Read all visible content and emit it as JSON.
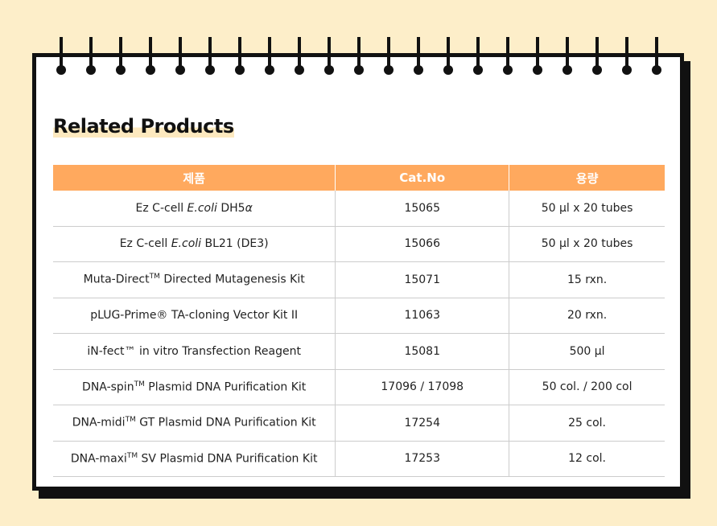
{
  "header": {
    "title": "Related Products"
  },
  "table": {
    "columns": [
      "제품",
      "Cat.No",
      "용량"
    ],
    "rows": [
      [
        [
          {
            "text": "Ez C-cell "
          },
          {
            "text": "E.coli",
            "style": "italic"
          },
          {
            "text": " DH5"
          },
          {
            "text": "α",
            "style": "italic"
          }
        ],
        "15065",
        "50 µl x 20 tubes"
      ],
      [
        [
          {
            "text": "Ez C-cell "
          },
          {
            "text": "E.coli",
            "style": "italic"
          },
          {
            "text": " BL21 (DE3)"
          }
        ],
        "15066",
        "50 µl x 20 tubes"
      ],
      [
        [
          {
            "text": "Muta-Direct"
          },
          {
            "text": "TM",
            "style": "sup"
          },
          {
            "text": " Directed Mutagenesis Kit"
          }
        ],
        "15071",
        "15 rxn."
      ],
      [
        [
          {
            "text": "pLUG-Prime® TA-cloning Vector Kit II"
          }
        ],
        "11063",
        "20 rxn."
      ],
      [
        [
          {
            "text": "iN-fect™ in vitro Transfection Reagent"
          }
        ],
        "15081",
        "500 µl"
      ],
      [
        [
          {
            "text": "DNA-spin"
          },
          {
            "text": "TM",
            "style": "sup"
          },
          {
            "text": " Plasmid DNA Purification Kit"
          }
        ],
        "17096 / 17098",
        "50 col. / 200 col"
      ],
      [
        [
          {
            "text": "DNA-midi"
          },
          {
            "text": "TM",
            "style": "sup"
          },
          {
            "text": " GT Plasmid DNA Purification Kit"
          }
        ],
        "17254",
        "25 col."
      ],
      [
        [
          {
            "text": "DNA-maxi"
          },
          {
            "text": "TM",
            "style": "sup"
          },
          {
            "text": " SV Plasmid DNA Purification Kit"
          }
        ],
        "17253",
        "12 col."
      ]
    ]
  }
}
